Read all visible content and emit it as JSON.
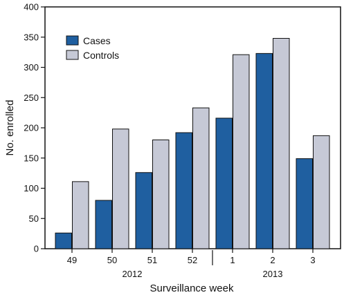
{
  "chart_data": {
    "type": "bar",
    "xlabel": "Surveillance week",
    "ylabel": "No. enrolled",
    "ylim": [
      0,
      400
    ],
    "yticks": [
      0,
      50,
      100,
      150,
      200,
      250,
      300,
      350,
      400
    ],
    "categories": [
      "49",
      "50",
      "51",
      "52",
      "1",
      "2",
      "3"
    ],
    "year_groups": [
      {
        "label": "2012",
        "categories": [
          "49",
          "50",
          "51",
          "52"
        ]
      },
      {
        "label": "2013",
        "categories": [
          "1",
          "2",
          "3"
        ]
      }
    ],
    "legend_position": "top-left",
    "grid": false,
    "series": [
      {
        "name": "Cases",
        "color": "#1f5fa0",
        "values": [
          26,
          80,
          126,
          192,
          216,
          323,
          149
        ]
      },
      {
        "name": "Controls",
        "color": "#c6c9d6",
        "values": [
          111,
          198,
          180,
          233,
          321,
          348,
          187
        ]
      }
    ]
  }
}
